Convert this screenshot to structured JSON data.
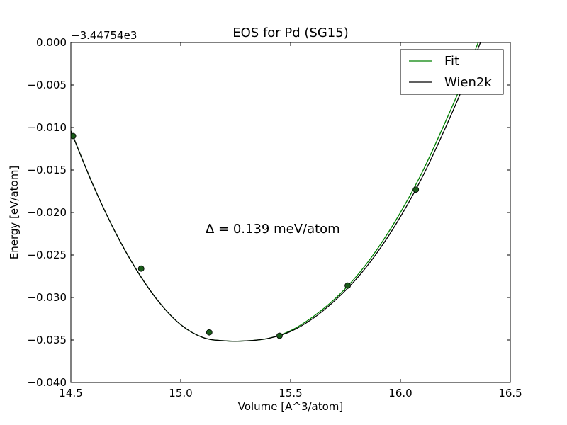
{
  "chart_data": {
    "type": "line",
    "title": "EOS for Pd (SG15)",
    "xlabel": "Volume [A^3/atom]",
    "ylabel": "Energy [eV/atom]",
    "y_offset_label": "−3.44754e3",
    "annotation": "Δ = 0.139 meV/atom",
    "xlim": [
      14.5,
      16.5
    ],
    "ylim": [
      -0.04,
      0.0
    ],
    "x_ticks": [
      14.5,
      15.0,
      15.5,
      16.0,
      16.5
    ],
    "x_tick_labels": [
      "14.5",
      "15.0",
      "15.5",
      "16.0",
      "16.5"
    ],
    "y_ticks": [
      0.0,
      -0.005,
      -0.01,
      -0.015,
      -0.02,
      -0.025,
      -0.03,
      -0.035,
      -0.04
    ],
    "y_tick_labels": [
      "0.000",
      "−0.005",
      "−0.010",
      "−0.015",
      "−0.020",
      "−0.025",
      "−0.030",
      "−0.035",
      "−0.040"
    ],
    "legend_position": "top-right",
    "points": {
      "x": [
        14.51,
        14.82,
        15.13,
        15.45,
        15.76,
        16.07
      ],
      "y": [
        -0.011,
        -0.0266,
        -0.0341,
        -0.0345,
        -0.0286,
        -0.0173
      ],
      "color": "#1a5c1a"
    },
    "series": [
      {
        "name": "Fit",
        "color": "#008000",
        "x": [
          14.5,
          14.6,
          14.7,
          14.8,
          14.9,
          15.0,
          15.1,
          15.2,
          15.3,
          15.4,
          15.5,
          15.6,
          15.7,
          15.8,
          15.9,
          16.0,
          16.1,
          16.2,
          16.3,
          16.4
        ],
        "y": [
          -0.0104,
          -0.0167,
          -0.0222,
          -0.0268,
          -0.0305,
          -0.0332,
          -0.0347,
          -0.0351,
          -0.0351,
          -0.0348,
          -0.0339,
          -0.0323,
          -0.0302,
          -0.0275,
          -0.0241,
          -0.02,
          -0.0152,
          -0.0096,
          -0.0036,
          0.0032
        ]
      },
      {
        "name": "Wien2k",
        "color": "#000000",
        "x": [
          14.5,
          14.6,
          14.7,
          14.8,
          14.9,
          15.0,
          15.1,
          15.2,
          15.3,
          15.4,
          15.5,
          15.6,
          15.7,
          15.8,
          15.9,
          16.0,
          16.1,
          16.2,
          16.3,
          16.4
        ],
        "y": [
          -0.0104,
          -0.0167,
          -0.0222,
          -0.0268,
          -0.0305,
          -0.0332,
          -0.0347,
          -0.0351,
          -0.0351,
          -0.0348,
          -0.034,
          -0.0325,
          -0.0304,
          -0.0278,
          -0.0245,
          -0.0205,
          -0.0158,
          -0.0103,
          -0.0043,
          0.0025
        ]
      }
    ]
  }
}
